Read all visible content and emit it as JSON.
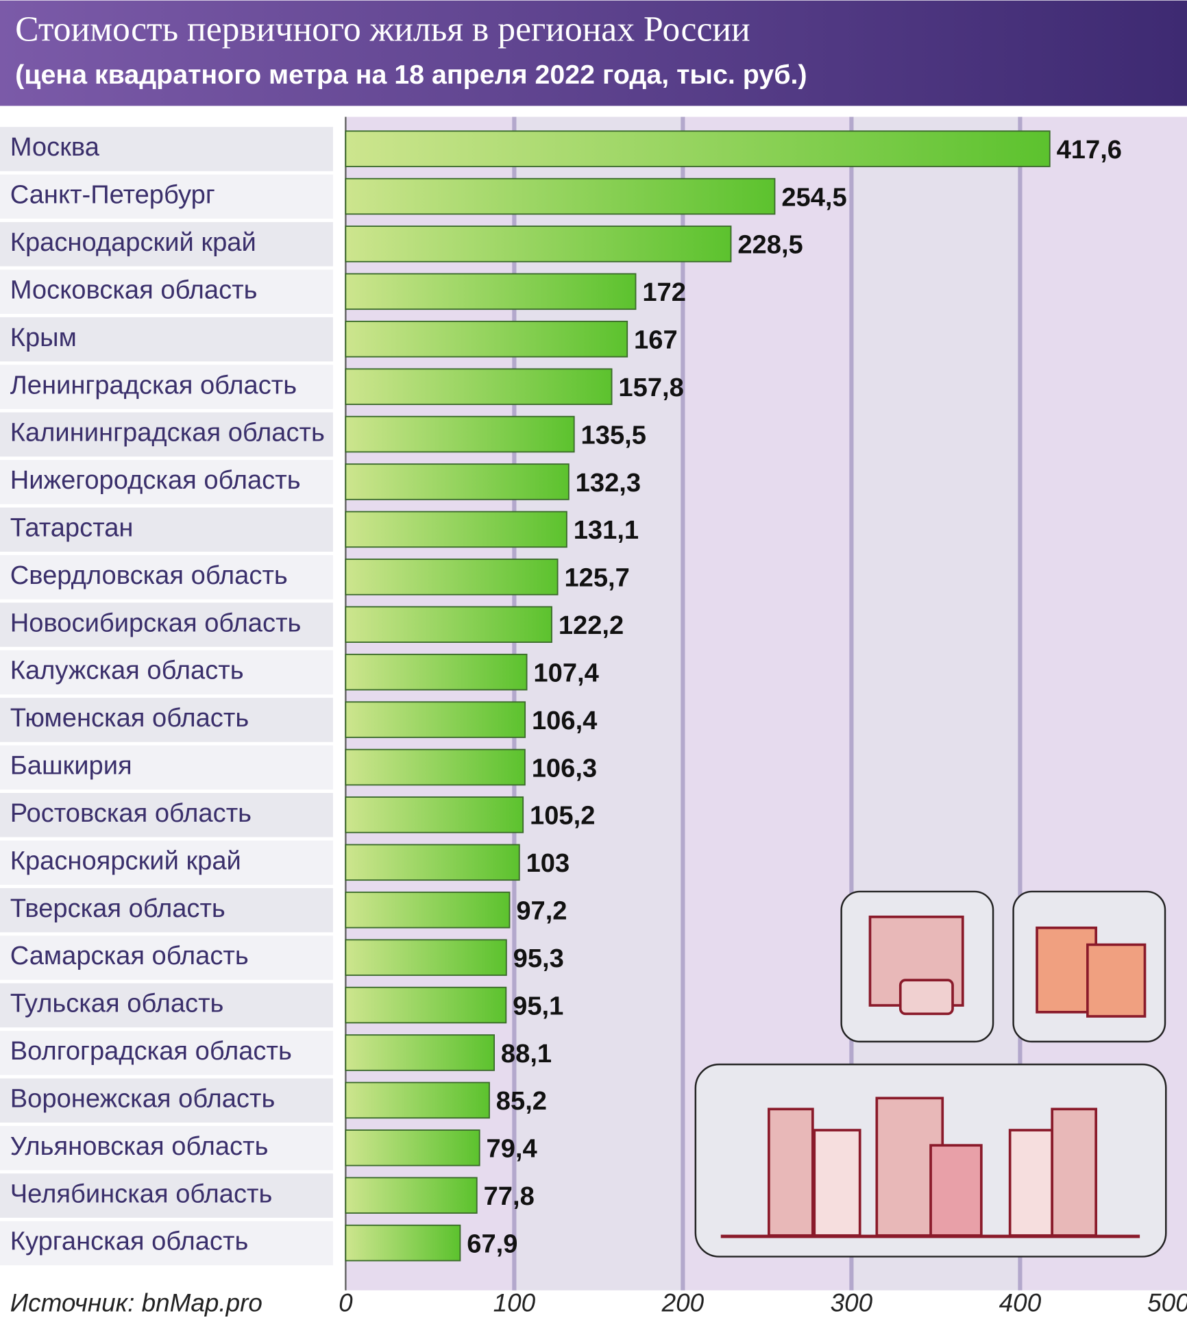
{
  "chart_data": {
    "type": "bar",
    "orientation": "horizontal",
    "title": "Стоимость первичного жилья в регионах России",
    "subtitle": "(цена квадратного метра на 18 апреля 2022 года, тыс. руб.)",
    "source": "Источник: bnMap.pro",
    "categories": [
      "Москва",
      "Санкт-Петербург",
      "Краснодарский край",
      "Московская область",
      "Крым",
      "Ленинградская область",
      "Калининградская область",
      "Нижегородская область",
      "Татарстан",
      "Свердловская область",
      "Новосибирская область",
      "Калужская область",
      "Тюменская область",
      "Башкирия",
      "Ростовская область",
      "Красноярский край",
      "Тверская область",
      "Самарская область",
      "Тульская область",
      "Волгоградская область",
      "Воронежская область",
      "Ульяновская область",
      "Челябинская область",
      "Курганская область"
    ],
    "values": [
      417.6,
      254.5,
      228.5,
      172,
      167,
      157.8,
      135.5,
      132.3,
      131.1,
      125.7,
      122.2,
      107.4,
      106.4,
      106.3,
      105.2,
      103,
      97.2,
      95.3,
      95.1,
      88.1,
      85.2,
      79.4,
      77.8,
      67.9
    ],
    "value_labels": [
      "417,6",
      "254,5",
      "228,5",
      "172",
      "167",
      "157,8",
      "135,5",
      "132,3",
      "131,1",
      "125,7",
      "122,2",
      "107,4",
      "106,4",
      "106,3",
      "105,2",
      "103",
      "97,2",
      "95,3",
      "95,1",
      "88,1",
      "85,2",
      "79,4",
      "77,8",
      "67,9"
    ],
    "color": "#5cc22e",
    "xlim": [
      0,
      500
    ],
    "xticks": [
      0,
      100,
      200,
      300,
      400,
      500
    ],
    "grid": true
  }
}
